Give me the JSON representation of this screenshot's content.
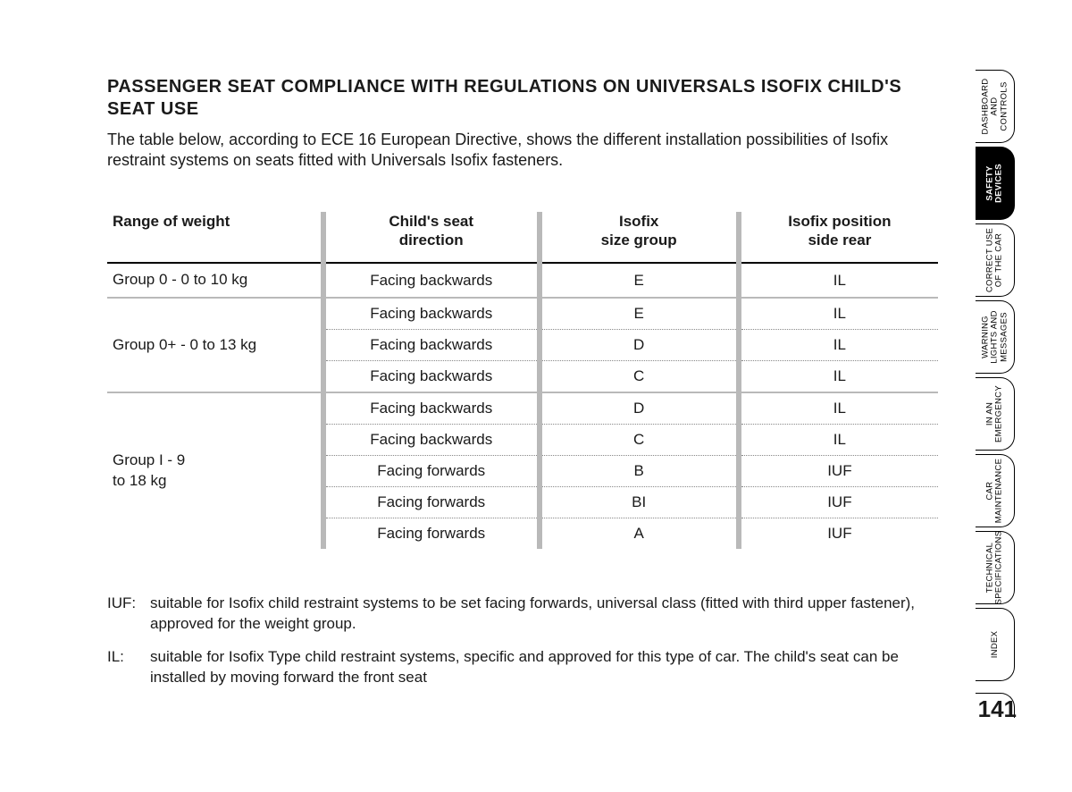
{
  "page": {
    "heading": "PASSENGER SEAT COMPLIANCE WITH REGULATIONS ON UNIVERSALS ISOFIX CHILD'S SEAT USE",
    "intro": "The table below, according to ECE 16 European Directive, shows the different installation possibilities of Isofix restraint systems on seats fitted with Universals Isofix fasteners.",
    "page_number": "141"
  },
  "table": {
    "headers": {
      "c1": "Range of weight",
      "c2a": "Child's seat",
      "c2b": "direction",
      "c3a": "Isofix",
      "c3b": "size group",
      "c4a": "Isofix position",
      "c4b": "side rear"
    },
    "groups": [
      {
        "label": "Group 0 - 0 to 10 kg",
        "rows": [
          {
            "direction": "Facing backwards",
            "size": "E",
            "pos": "IL"
          }
        ]
      },
      {
        "label": "Group 0+ - 0 to 13 kg",
        "rows": [
          {
            "direction": "Facing backwards",
            "size": "E",
            "pos": "IL"
          },
          {
            "direction": "Facing backwards",
            "size": "D",
            "pos": "IL"
          },
          {
            "direction": "Facing backwards",
            "size": "C",
            "pos": "IL"
          }
        ]
      },
      {
        "label": "Group I - 9\nto 18 kg",
        "rows": [
          {
            "direction": "Facing backwards",
            "size": "D",
            "pos": "IL"
          },
          {
            "direction": "Facing backwards",
            "size": "C",
            "pos": "IL"
          },
          {
            "direction": "Facing forwards",
            "size": "B",
            "pos": "IUF"
          },
          {
            "direction": "Facing forwards",
            "size": "BI",
            "pos": "IUF"
          },
          {
            "direction": "Facing forwards",
            "size": "A",
            "pos": "IUF"
          }
        ]
      }
    ]
  },
  "legend": [
    {
      "key": "IUF:",
      "text": "suitable for Isofix child restraint systems to be set facing forwards, universal class  (fitted with third upper fastener), approved for the weight group."
    },
    {
      "key": "IL:",
      "text": "suitable for Isofix Type child restraint systems, specific and approved for this type of car. The child's seat can be installed by moving forward the front seat"
    }
  ],
  "tabs": [
    {
      "label": "DASHBOARD\nAND\nCONTROLS",
      "active": false
    },
    {
      "label": "SAFETY\nDEVICES",
      "active": true
    },
    {
      "label": "CORRECT USE\nOF THE CAR",
      "active": false
    },
    {
      "label": "WARNING\nLIGHTS AND\nMESSAGES",
      "active": false
    },
    {
      "label": "IN AN\nEMERGENCY",
      "active": false
    },
    {
      "label": "CAR\nMAINTENANCE",
      "active": false
    },
    {
      "label": "TECHNICAL\nSPECIFICATIONS",
      "active": false
    },
    {
      "label": "INDEX",
      "active": false
    }
  ]
}
